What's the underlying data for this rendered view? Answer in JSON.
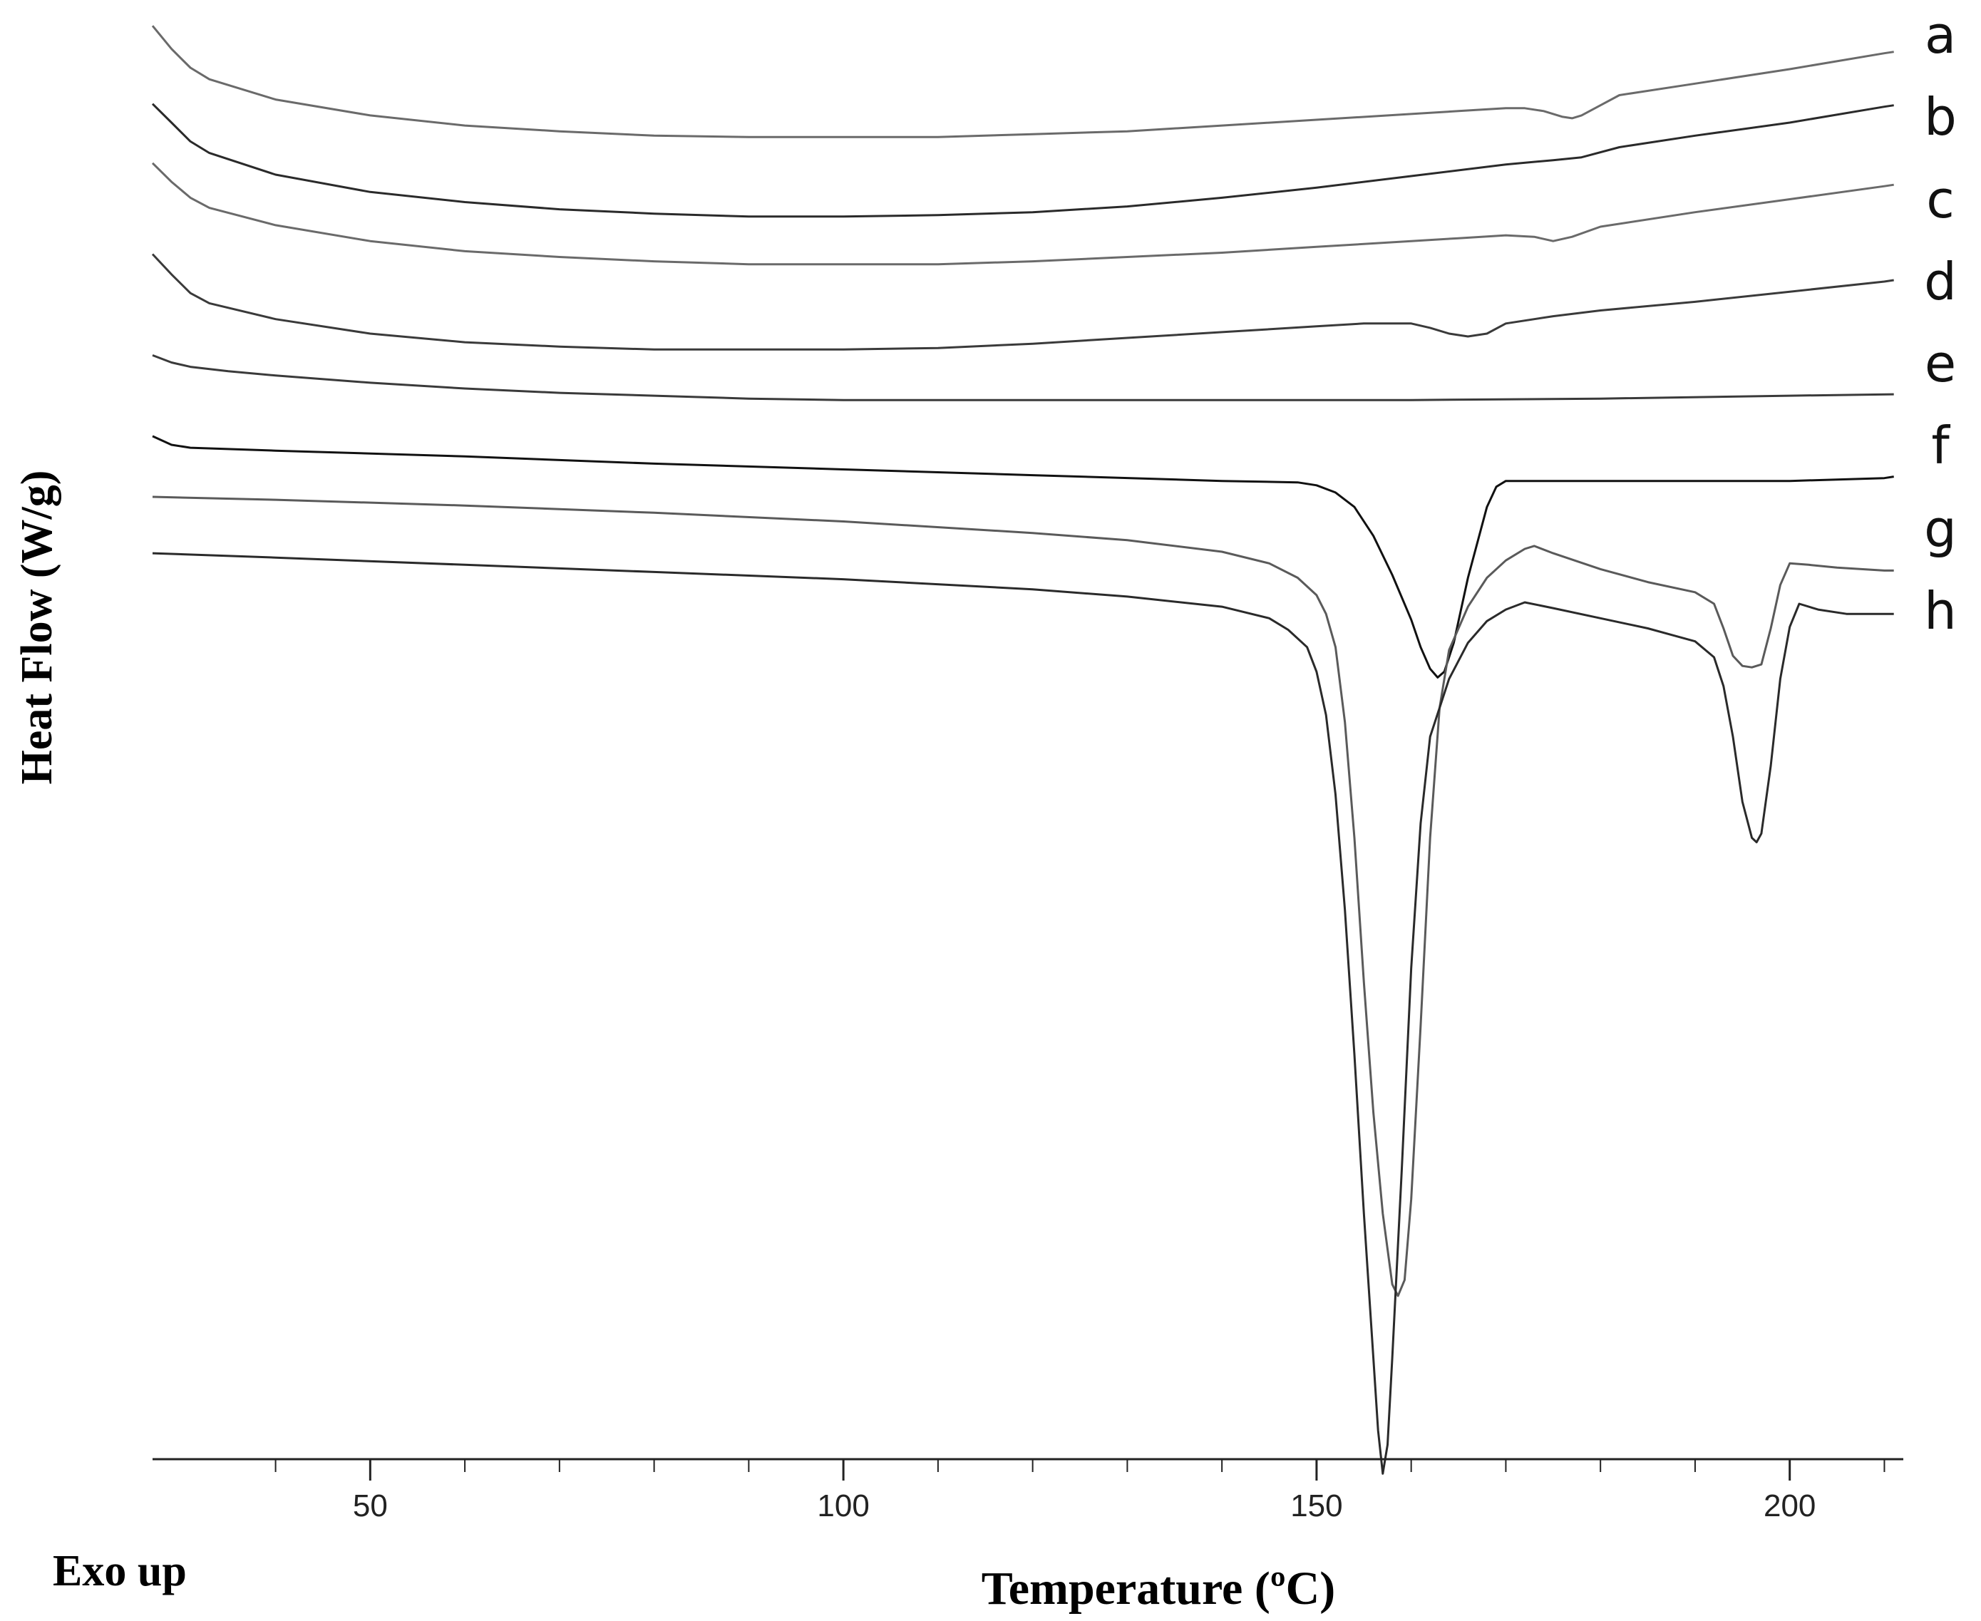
{
  "chart_data": {
    "type": "line",
    "xlabel": "Temperature (ºC)",
    "ylabel": "Heat Flow (W/g)",
    "note": "Exo up",
    "xlim": [
      27,
      212
    ],
    "ylim": [
      0,
      1
    ],
    "x_ticks_major": [
      50,
      100,
      150,
      200
    ],
    "x_ticks_minor": [
      40,
      60,
      70,
      80,
      90,
      110,
      120,
      130,
      140,
      160,
      170,
      180,
      190,
      210
    ],
    "grid": false,
    "legend": "curve labels at right edge",
    "colors": {
      "dark": "#1a1a1a",
      "mid": "#3a3a3a",
      "light": "#6a6a6a"
    },
    "series": [
      {
        "name": "a",
        "color": "#6a6a6a",
        "points": [
          [
            27,
            0.992
          ],
          [
            29,
            0.976
          ],
          [
            31,
            0.963
          ],
          [
            33,
            0.955
          ],
          [
            40,
            0.941
          ],
          [
            50,
            0.93
          ],
          [
            60,
            0.923
          ],
          [
            70,
            0.919
          ],
          [
            80,
            0.916
          ],
          [
            90,
            0.915
          ],
          [
            100,
            0.915
          ],
          [
            110,
            0.915
          ],
          [
            120,
            0.917
          ],
          [
            130,
            0.919
          ],
          [
            140,
            0.923
          ],
          [
            150,
            0.927
          ],
          [
            160,
            0.931
          ],
          [
            165,
            0.933
          ],
          [
            170,
            0.935
          ],
          [
            172,
            0.935
          ],
          [
            174,
            0.933
          ],
          [
            176,
            0.929
          ],
          [
            177,
            0.928
          ],
          [
            178,
            0.93
          ],
          [
            180,
            0.937
          ],
          [
            182,
            0.944
          ],
          [
            190,
            0.952
          ],
          [
            200,
            0.962
          ],
          [
            210,
            0.973
          ],
          [
            211,
            0.974
          ]
        ]
      },
      {
        "name": "b",
        "color": "#2a2a2a",
        "points": [
          [
            27,
            0.938
          ],
          [
            29,
            0.925
          ],
          [
            31,
            0.912
          ],
          [
            33,
            0.904
          ],
          [
            40,
            0.889
          ],
          [
            50,
            0.877
          ],
          [
            60,
            0.87
          ],
          [
            70,
            0.865
          ],
          [
            80,
            0.862
          ],
          [
            90,
            0.86
          ],
          [
            100,
            0.86
          ],
          [
            110,
            0.861
          ],
          [
            120,
            0.863
          ],
          [
            130,
            0.867
          ],
          [
            140,
            0.873
          ],
          [
            150,
            0.88
          ],
          [
            160,
            0.888
          ],
          [
            170,
            0.896
          ],
          [
            175,
            0.899
          ],
          [
            178,
            0.901
          ],
          [
            182,
            0.908
          ],
          [
            190,
            0.916
          ],
          [
            200,
            0.925
          ],
          [
            210,
            0.936
          ],
          [
            211,
            0.937
          ]
        ]
      },
      {
        "name": "c",
        "color": "#6a6a6a",
        "points": [
          [
            27,
            0.897
          ],
          [
            29,
            0.884
          ],
          [
            31,
            0.873
          ],
          [
            33,
            0.866
          ],
          [
            40,
            0.854
          ],
          [
            50,
            0.843
          ],
          [
            60,
            0.836
          ],
          [
            70,
            0.832
          ],
          [
            80,
            0.829
          ],
          [
            90,
            0.827
          ],
          [
            100,
            0.827
          ],
          [
            110,
            0.827
          ],
          [
            120,
            0.829
          ],
          [
            130,
            0.832
          ],
          [
            140,
            0.835
          ],
          [
            150,
            0.839
          ],
          [
            160,
            0.843
          ],
          [
            165,
            0.845
          ],
          [
            170,
            0.847
          ],
          [
            173,
            0.846
          ],
          [
            175,
            0.843
          ],
          [
            177,
            0.846
          ],
          [
            180,
            0.853
          ],
          [
            190,
            0.863
          ],
          [
            200,
            0.872
          ],
          [
            210,
            0.881
          ],
          [
            211,
            0.882
          ]
        ]
      },
      {
        "name": "d",
        "color": "#3a3a3a",
        "points": [
          [
            27,
            0.834
          ],
          [
            29,
            0.82
          ],
          [
            31,
            0.807
          ],
          [
            33,
            0.8
          ],
          [
            40,
            0.789
          ],
          [
            50,
            0.779
          ],
          [
            60,
            0.773
          ],
          [
            70,
            0.77
          ],
          [
            80,
            0.768
          ],
          [
            90,
            0.768
          ],
          [
            100,
            0.768
          ],
          [
            110,
            0.769
          ],
          [
            120,
            0.772
          ],
          [
            130,
            0.776
          ],
          [
            140,
            0.78
          ],
          [
            150,
            0.784
          ],
          [
            155,
            0.786
          ],
          [
            160,
            0.786
          ],
          [
            162,
            0.783
          ],
          [
            164,
            0.779
          ],
          [
            166,
            0.777
          ],
          [
            168,
            0.779
          ],
          [
            170,
            0.786
          ],
          [
            175,
            0.791
          ],
          [
            180,
            0.795
          ],
          [
            190,
            0.801
          ],
          [
            200,
            0.808
          ],
          [
            210,
            0.815
          ],
          [
            211,
            0.816
          ]
        ]
      },
      {
        "name": "e",
        "color": "#3a3a3a",
        "points": [
          [
            27,
            0.764
          ],
          [
            29,
            0.759
          ],
          [
            31,
            0.756
          ],
          [
            35,
            0.753
          ],
          [
            40,
            0.75
          ],
          [
            50,
            0.745
          ],
          [
            60,
            0.741
          ],
          [
            70,
            0.738
          ],
          [
            80,
            0.736
          ],
          [
            90,
            0.734
          ],
          [
            100,
            0.733
          ],
          [
            120,
            0.733
          ],
          [
            140,
            0.733
          ],
          [
            160,
            0.733
          ],
          [
            180,
            0.734
          ],
          [
            200,
            0.736
          ],
          [
            211,
            0.737
          ]
        ]
      },
      {
        "name": "f",
        "color": "#111111",
        "points": [
          [
            27,
            0.708
          ],
          [
            29,
            0.702
          ],
          [
            31,
            0.7
          ],
          [
            40,
            0.698
          ],
          [
            60,
            0.694
          ],
          [
            80,
            0.689
          ],
          [
            100,
            0.685
          ],
          [
            120,
            0.681
          ],
          [
            140,
            0.677
          ],
          [
            148,
            0.676
          ],
          [
            150,
            0.674
          ],
          [
            152,
            0.669
          ],
          [
            154,
            0.659
          ],
          [
            156,
            0.639
          ],
          [
            158,
            0.612
          ],
          [
            160,
            0.581
          ],
          [
            161,
            0.562
          ],
          [
            162,
            0.547
          ],
          [
            162.8,
            0.541
          ],
          [
            163.5,
            0.545
          ],
          [
            164.5,
            0.565
          ],
          [
            166,
            0.61
          ],
          [
            168,
            0.659
          ],
          [
            169,
            0.673
          ],
          [
            170,
            0.677
          ],
          [
            175,
            0.677
          ],
          [
            180,
            0.677
          ],
          [
            190,
            0.677
          ],
          [
            200,
            0.677
          ],
          [
            210,
            0.679
          ],
          [
            211,
            0.68
          ]
        ]
      },
      {
        "name": "g",
        "color": "#5a5a5a",
        "points": [
          [
            27,
            0.666
          ],
          [
            40,
            0.664
          ],
          [
            60,
            0.66
          ],
          [
            80,
            0.655
          ],
          [
            100,
            0.649
          ],
          [
            120,
            0.641
          ],
          [
            130,
            0.636
          ],
          [
            140,
            0.628
          ],
          [
            145,
            0.62
          ],
          [
            148,
            0.61
          ],
          [
            150,
            0.598
          ],
          [
            151,
            0.585
          ],
          [
            152,
            0.562
          ],
          [
            153,
            0.51
          ],
          [
            154,
            0.43
          ],
          [
            155,
            0.33
          ],
          [
            156,
            0.24
          ],
          [
            157,
            0.17
          ],
          [
            158,
            0.121
          ],
          [
            158.6,
            0.113
          ],
          [
            159.3,
            0.124
          ],
          [
            160,
            0.18
          ],
          [
            161,
            0.3
          ],
          [
            162,
            0.43
          ],
          [
            163,
            0.52
          ],
          [
            164,
            0.56
          ],
          [
            166,
            0.59
          ],
          [
            168,
            0.61
          ],
          [
            170,
            0.622
          ],
          [
            172,
            0.63
          ],
          [
            173,
            0.632
          ],
          [
            175,
            0.627
          ],
          [
            180,
            0.616
          ],
          [
            185,
            0.607
          ],
          [
            190,
            0.6
          ],
          [
            192,
            0.592
          ],
          [
            193,
            0.575
          ],
          [
            194,
            0.556
          ],
          [
            195,
            0.549
          ],
          [
            196,
            0.548
          ],
          [
            197,
            0.55
          ],
          [
            198,
            0.575
          ],
          [
            199,
            0.605
          ],
          [
            200,
            0.62
          ],
          [
            202,
            0.619
          ],
          [
            205,
            0.617
          ],
          [
            210,
            0.615
          ],
          [
            211,
            0.615
          ]
        ]
      },
      {
        "name": "h",
        "color": "#2a2a2a",
        "points": [
          [
            27,
            0.627
          ],
          [
            40,
            0.624
          ],
          [
            60,
            0.619
          ],
          [
            80,
            0.614
          ],
          [
            100,
            0.609
          ],
          [
            120,
            0.602
          ],
          [
            130,
            0.597
          ],
          [
            140,
            0.59
          ],
          [
            145,
            0.582
          ],
          [
            147,
            0.574
          ],
          [
            149,
            0.562
          ],
          [
            150,
            0.545
          ],
          [
            151,
            0.515
          ],
          [
            152,
            0.46
          ],
          [
            153,
            0.38
          ],
          [
            154,
            0.28
          ],
          [
            155,
            0.17
          ],
          [
            156,
            0.07
          ],
          [
            156.5,
            0.02
          ],
          [
            157,
            -0.01
          ],
          [
            157.5,
            0.01
          ],
          [
            158,
            0.07
          ],
          [
            159,
            0.2
          ],
          [
            160,
            0.34
          ],
          [
            161,
            0.44
          ],
          [
            162,
            0.5
          ],
          [
            164,
            0.54
          ],
          [
            166,
            0.565
          ],
          [
            168,
            0.58
          ],
          [
            170,
            0.588
          ],
          [
            172,
            0.593
          ],
          [
            175,
            0.589
          ],
          [
            180,
            0.582
          ],
          [
            185,
            0.575
          ],
          [
            190,
            0.566
          ],
          [
            192,
            0.555
          ],
          [
            193,
            0.535
          ],
          [
            194,
            0.5
          ],
          [
            195,
            0.455
          ],
          [
            196,
            0.43
          ],
          [
            196.5,
            0.427
          ],
          [
            197,
            0.433
          ],
          [
            198,
            0.48
          ],
          [
            199,
            0.54
          ],
          [
            200,
            0.576
          ],
          [
            201,
            0.592
          ],
          [
            203,
            0.588
          ],
          [
            206,
            0.585
          ],
          [
            210,
            0.585
          ],
          [
            211,
            0.585
          ]
        ]
      }
    ]
  }
}
